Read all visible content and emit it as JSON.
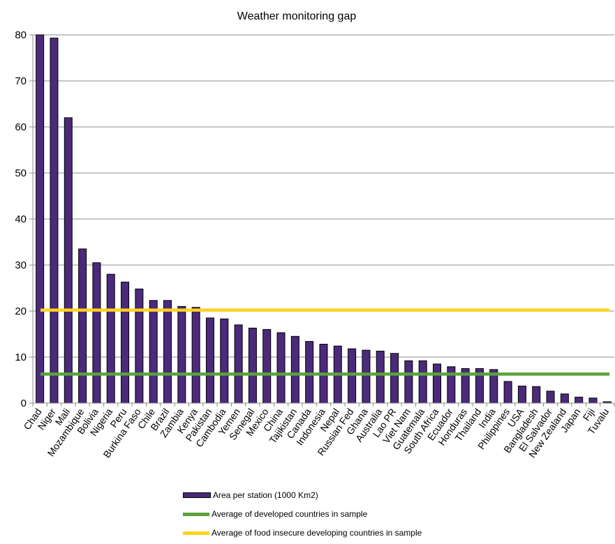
{
  "chart_data": {
    "type": "bar",
    "title": "Weather monitoring gap",
    "xlabel": "",
    "ylabel": "",
    "ylim": [
      0,
      80
    ],
    "yticks": [
      0,
      10,
      20,
      30,
      40,
      50,
      60,
      70,
      80
    ],
    "grid": true,
    "legend_position": "bottom",
    "categories": [
      "Chad",
      "Niger",
      "Mali",
      "Mozambique",
      "Bolivia",
      "Nigeria",
      "Peru",
      "Burkina Faso",
      "Chile",
      "Brazil",
      "Zambia",
      "Kenya",
      "Pakistan",
      "Cambodia",
      "Yemen",
      "Senegal",
      "Mexico",
      "China",
      "Tajikistan",
      "Canada",
      "Indonesia",
      "Nepal",
      "Russian Fed",
      "Ghana",
      "Australia",
      "Lao PR",
      "Viet Nam",
      "Guatemala",
      "South Africa",
      "Ecuador",
      "Honduras",
      "Thailand",
      "India",
      "Philippines",
      "USA",
      "Bangladesh",
      "El Salvador",
      "New Zealand",
      "Japan",
      "Fiji",
      "Tuvalu"
    ],
    "series": [
      {
        "name": "Area per station (1000 Km2)",
        "kind": "bar",
        "color": "#4b2a7b",
        "values": [
          80.0,
          79.3,
          62.0,
          33.5,
          30.5,
          28.0,
          26.3,
          24.8,
          22.3,
          22.3,
          21.0,
          20.8,
          18.5,
          18.3,
          17.0,
          16.3,
          16.0,
          15.3,
          14.5,
          13.4,
          12.8,
          12.4,
          11.8,
          11.5,
          11.3,
          10.8,
          9.2,
          9.2,
          8.5,
          7.9,
          7.5,
          7.5,
          7.3,
          4.7,
          3.7,
          3.6,
          2.6,
          2.0,
          1.3,
          1.1,
          0.3
        ]
      },
      {
        "name": "Average of developed countries in sample",
        "kind": "line",
        "color": "#5aa23a",
        "value": 6.3
      },
      {
        "name": "Average of food insecure developing countries in sample",
        "kind": "line",
        "color": "#ffd21f",
        "value": 20.2
      }
    ]
  }
}
